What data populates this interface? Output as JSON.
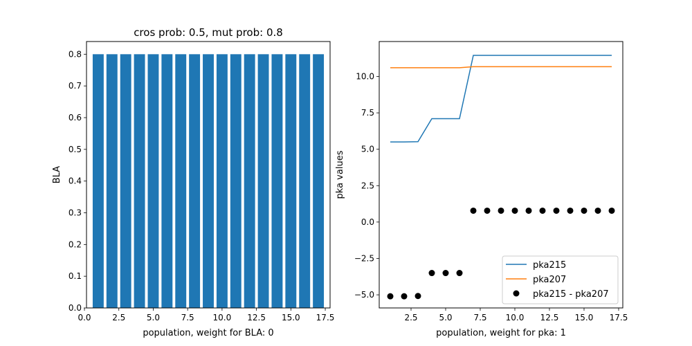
{
  "figure": {
    "background": "#ffffff"
  },
  "chart_data": [
    {
      "type": "bar",
      "title": "cros prob: 0.5, mut prob: 0.8",
      "xlabel": "population, weight for BLA: 0",
      "ylabel": "BLA",
      "xlim": [
        0.15,
        17.85
      ],
      "ylim": [
        0,
        0.84
      ],
      "xticks": [
        0.0,
        2.5,
        5.0,
        7.5,
        10.0,
        12.5,
        15.0,
        17.5
      ],
      "xtick_labels": [
        "0.0",
        "2.5",
        "5.0",
        "7.5",
        "10.0",
        "12.5",
        "15.0",
        "17.5"
      ],
      "yticks": [
        0.0,
        0.1,
        0.2,
        0.3,
        0.4,
        0.5,
        0.6,
        0.7,
        0.8
      ],
      "ytick_labels": [
        "0.0",
        "0.1",
        "0.2",
        "0.3",
        "0.4",
        "0.5",
        "0.6",
        "0.7",
        "0.8"
      ],
      "bar_width": 0.8,
      "color": "#1f77b4",
      "x": [
        1,
        2,
        3,
        4,
        5,
        6,
        7,
        8,
        9,
        10,
        11,
        12,
        13,
        14,
        15,
        16,
        17
      ],
      "values": [
        0.8,
        0.8,
        0.8,
        0.8,
        0.8,
        0.8,
        0.8,
        0.8,
        0.8,
        0.8,
        0.8,
        0.8,
        0.8,
        0.8,
        0.8,
        0.8,
        0.8
      ]
    },
    {
      "type": "line",
      "title": "",
      "xlabel": "population, weight for pka: 1",
      "ylabel": "pka values",
      "xlim": [
        0.2,
        17.8
      ],
      "ylim": [
        -5.9,
        12.4
      ],
      "xticks": [
        2.5,
        5.0,
        7.5,
        10.0,
        12.5,
        15.0,
        17.5
      ],
      "xtick_labels": [
        "2.5",
        "5.0",
        "7.5",
        "10.0",
        "12.5",
        "15.0",
        "17.5"
      ],
      "yticks": [
        -5.0,
        -2.5,
        0.0,
        2.5,
        5.0,
        7.5,
        10.0
      ],
      "ytick_labels": [
        "−5.0",
        "−2.5",
        "0.0",
        "2.5",
        "5.0",
        "7.5",
        "10.0"
      ],
      "legend_position": "lower-right",
      "x": [
        1,
        2,
        3,
        4,
        5,
        6,
        7,
        8,
        9,
        10,
        11,
        12,
        13,
        14,
        15,
        16,
        17
      ],
      "series": [
        {
          "name": "pka215",
          "kind": "line",
          "color": "#1f77b4",
          "values": [
            5.5,
            5.5,
            5.52,
            7.1,
            7.1,
            7.1,
            11.45,
            11.45,
            11.45,
            11.45,
            11.45,
            11.45,
            11.45,
            11.45,
            11.45,
            11.45,
            11.45
          ]
        },
        {
          "name": "pka207",
          "kind": "line",
          "color": "#ff7f0e",
          "values": [
            10.6,
            10.6,
            10.6,
            10.6,
            10.6,
            10.6,
            10.67,
            10.67,
            10.67,
            10.67,
            10.67,
            10.67,
            10.67,
            10.67,
            10.67,
            10.67,
            10.67
          ]
        },
        {
          "name": "pka215 - pka207",
          "kind": "scatter",
          "color": "#000000",
          "values": [
            -5.1,
            -5.1,
            -5.08,
            -3.5,
            -3.5,
            -3.5,
            0.78,
            0.78,
            0.78,
            0.78,
            0.78,
            0.78,
            0.78,
            0.78,
            0.78,
            0.78,
            0.78
          ]
        }
      ]
    }
  ]
}
